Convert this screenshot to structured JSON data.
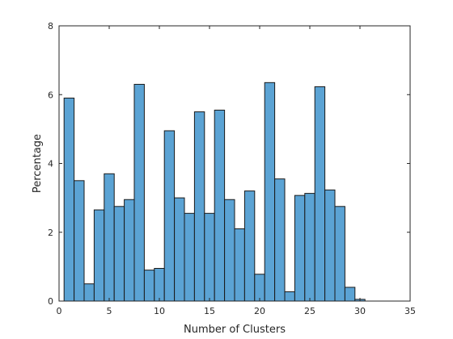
{
  "chart_data": {
    "type": "bar",
    "xlabel": "Number of Clusters",
    "ylabel": "Percentage",
    "xlim": [
      0,
      35
    ],
    "ylim": [
      0,
      8
    ],
    "xticks": [
      0,
      5,
      10,
      15,
      20,
      25,
      30,
      35
    ],
    "yticks": [
      0,
      2,
      4,
      6,
      8
    ],
    "bin_width": 1,
    "bins": [
      {
        "x": 1,
        "value": 5.9
      },
      {
        "x": 2,
        "value": 3.5
      },
      {
        "x": 3,
        "value": 0.5
      },
      {
        "x": 4,
        "value": 2.65
      },
      {
        "x": 5,
        "value": 3.7
      },
      {
        "x": 6,
        "value": 2.75
      },
      {
        "x": 7,
        "value": 2.95
      },
      {
        "x": 8,
        "value": 6.3
      },
      {
        "x": 9,
        "value": 0.9
      },
      {
        "x": 10,
        "value": 0.95
      },
      {
        "x": 11,
        "value": 4.95
      },
      {
        "x": 12,
        "value": 3.0
      },
      {
        "x": 13,
        "value": 2.55
      },
      {
        "x": 14,
        "value": 5.5
      },
      {
        "x": 15,
        "value": 2.55
      },
      {
        "x": 16,
        "value": 5.55
      },
      {
        "x": 17,
        "value": 2.95
      },
      {
        "x": 18,
        "value": 2.1
      },
      {
        "x": 19,
        "value": 3.2
      },
      {
        "x": 20,
        "value": 0.78
      },
      {
        "x": 21,
        "value": 6.35
      },
      {
        "x": 22,
        "value": 3.55
      },
      {
        "x": 23,
        "value": 0.27
      },
      {
        "x": 24,
        "value": 3.07
      },
      {
        "x": 25,
        "value": 3.13
      },
      {
        "x": 26,
        "value": 6.23
      },
      {
        "x": 27,
        "value": 3.23
      },
      {
        "x": 28,
        "value": 2.75
      },
      {
        "x": 29,
        "value": 0.4
      },
      {
        "x": 30,
        "value": 0.05
      }
    ],
    "bar_color": "#5ba3d4",
    "edge_color": "#1a1a1a",
    "grid": false
  }
}
